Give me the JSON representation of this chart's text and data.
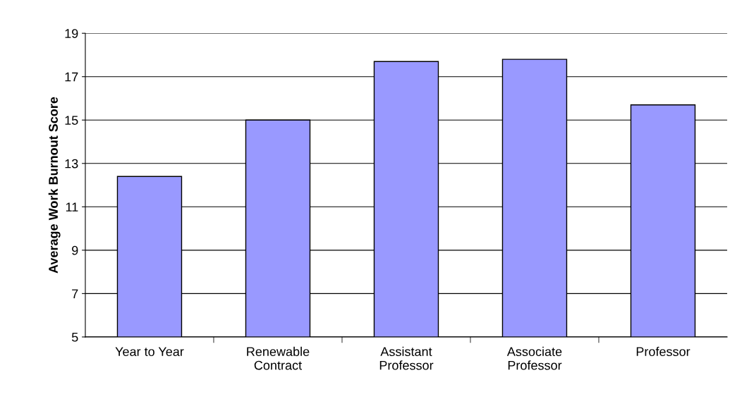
{
  "chart_data": {
    "type": "bar",
    "ylabel": "Average Work Burnout Score",
    "categories": [
      "Year to Year",
      "Renewable\nContract",
      "Assistant\nProfessor",
      "Associate\nProfessor",
      "Professor"
    ],
    "values": [
      12.4,
      15.0,
      17.7,
      17.8,
      15.7
    ],
    "color": "#9999ff",
    "ylim": [
      5,
      19
    ],
    "yticks": [
      5,
      7,
      9,
      11,
      13,
      15,
      17,
      19
    ],
    "grid": "y"
  }
}
